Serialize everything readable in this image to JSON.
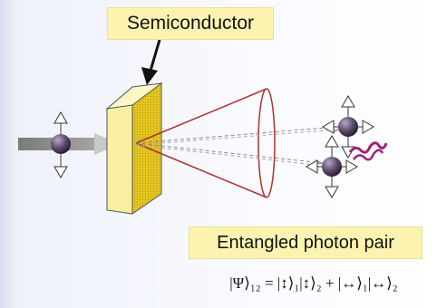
{
  "labels": {
    "semiconductor": "Semiconductor",
    "entangled_pair": "Entangled photon pair",
    "formula": "|Ψ⟩₁₂ = |↕⟩₁|↕⟩₂ + |↔⟩₁|↔⟩₂"
  },
  "colors": {
    "label_box": "#fdf3b0",
    "crystal_face": "#f8f0a0",
    "crystal_side": "#e8c820",
    "cone": "#b03030",
    "photon": "#5a4a6a",
    "wavy": "#a0207a",
    "beam": "#888888"
  }
}
